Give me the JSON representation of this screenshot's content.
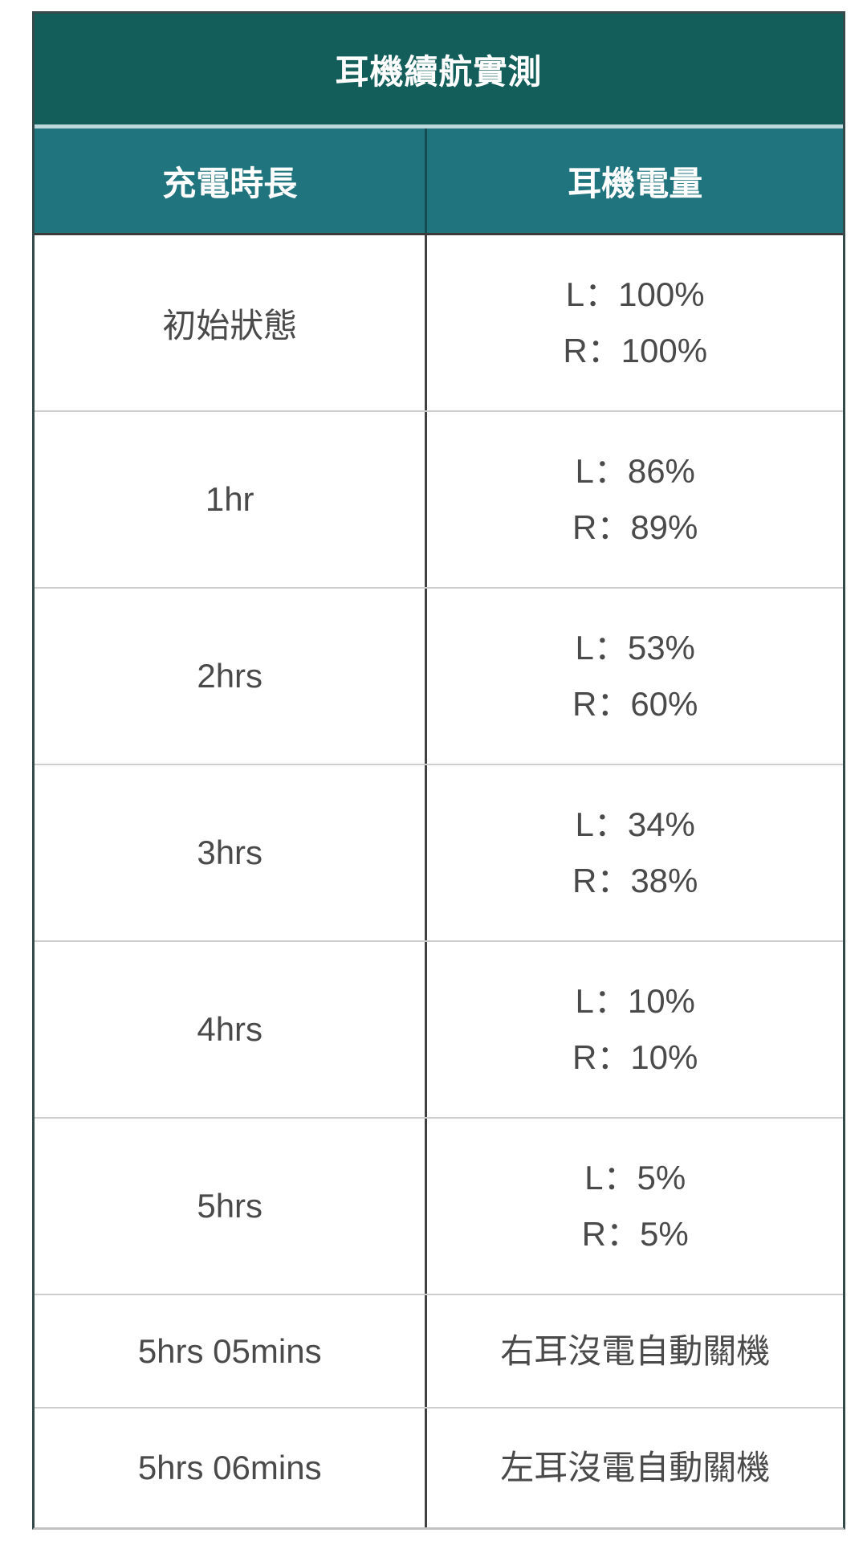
{
  "colors": {
    "title_bg": "#135e5a",
    "header_bg": "#20747e",
    "header_separator": "#bcd8dc",
    "header_text": "#ffffff",
    "body_text": "#4a4a4a",
    "column_divider": "#414141",
    "row_divider": "#cdcdcd"
  },
  "chart_data": {
    "type": "table",
    "title": "耳機續航實測",
    "columns": [
      "充電時長",
      "耳機電量"
    ],
    "rows": [
      {
        "duration": "初始狀態",
        "battery": [
          "L：100%",
          "R：100%"
        ]
      },
      {
        "duration": "1hr",
        "battery": [
          "L：86%",
          "R：89%"
        ]
      },
      {
        "duration": "2hrs",
        "battery": [
          "L：53%",
          "R：60%"
        ]
      },
      {
        "duration": "3hrs",
        "battery": [
          "L：34%",
          "R：38%"
        ]
      },
      {
        "duration": "4hrs",
        "battery": [
          "L：10%",
          "R：10%"
        ]
      },
      {
        "duration": "5hrs",
        "battery": [
          "L：5%",
          "R：5%"
        ]
      },
      {
        "duration": "5hrs 05mins",
        "battery": [
          "右耳沒電自動關機"
        ]
      },
      {
        "duration": "5hrs 06mins",
        "battery": [
          "左耳沒電自動關機"
        ]
      }
    ]
  }
}
